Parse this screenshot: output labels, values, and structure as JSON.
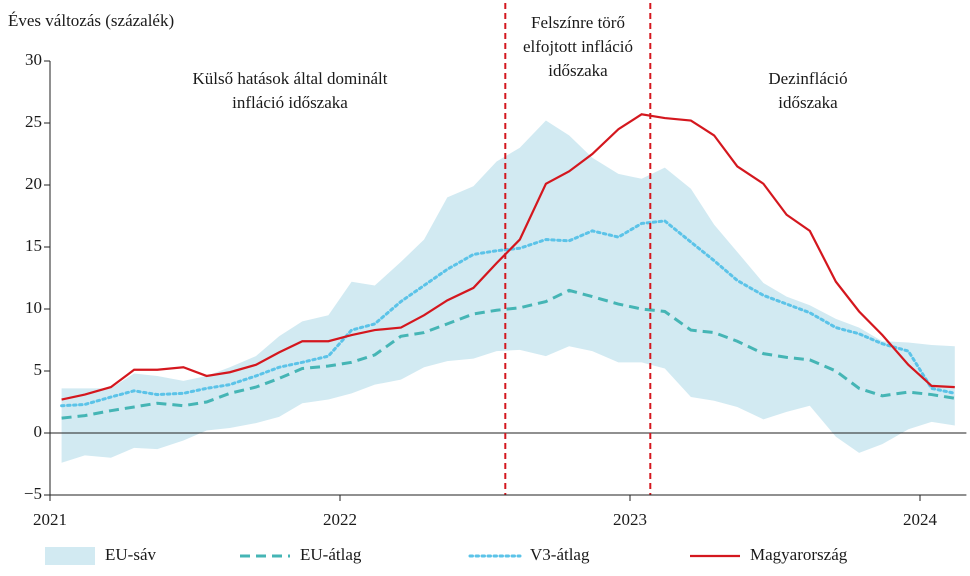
{
  "chart_data": {
    "type": "line",
    "ylabel": "Éves változás (százalék)",
    "x": [
      2021.04,
      2021.12,
      2021.21,
      2021.29,
      2021.37,
      2021.46,
      2021.54,
      2021.62,
      2021.71,
      2021.79,
      2021.87,
      2021.96,
      2022.04,
      2022.12,
      2022.21,
      2022.29,
      2022.37,
      2022.46,
      2022.54,
      2022.62,
      2022.71,
      2022.79,
      2022.87,
      2022.96,
      2023.04,
      2023.12,
      2023.21,
      2023.29,
      2023.37,
      2023.46,
      2023.54,
      2023.62,
      2023.71,
      2023.79,
      2023.87,
      2023.96,
      2024.04,
      2024.12
    ],
    "xlim": [
      2021,
      2024.16
    ],
    "xticks": [
      2021,
      2022,
      2023,
      2024
    ],
    "ylim": [
      -5,
      30
    ],
    "yticks": [
      {
        "value": -5,
        "label": "−5"
      },
      0,
      5,
      10,
      15,
      20,
      25,
      30
    ],
    "grid": false,
    "series": [
      {
        "name": "EU-sáv",
        "style": "area",
        "color": "#d2eaf2",
        "low": [
          -2.4,
          -1.8,
          -2.0,
          -1.2,
          -1.3,
          -0.6,
          0.2,
          0.4,
          0.8,
          1.3,
          2.4,
          2.7,
          3.2,
          3.9,
          4.3,
          5.3,
          5.8,
          6.0,
          6.6,
          6.7,
          6.2,
          7.0,
          6.6,
          5.7,
          5.7,
          5.2,
          2.9,
          2.6,
          2.1,
          1.1,
          1.7,
          2.2,
          -0.3,
          -1.6,
          -0.9,
          0.3,
          0.9,
          0.6
        ],
        "high": [
          3.6,
          3.6,
          3.6,
          4.8,
          4.6,
          4.2,
          4.6,
          5.3,
          6.2,
          7.8,
          9.0,
          9.5,
          12.2,
          11.9,
          13.8,
          15.6,
          19.0,
          19.9,
          21.9,
          23.0,
          25.2,
          24.0,
          22.2,
          20.9,
          20.5,
          21.4,
          19.7,
          16.8,
          14.6,
          12.1,
          11.0,
          10.3,
          9.2,
          8.5,
          7.4,
          7.3,
          7.1,
          7.0
        ]
      },
      {
        "name": "EU-átlag",
        "style": "dashed",
        "color": "#45b5b5",
        "values": [
          1.2,
          1.4,
          1.8,
          2.1,
          2.4,
          2.2,
          2.5,
          3.2,
          3.7,
          4.4,
          5.2,
          5.4,
          5.7,
          6.3,
          7.8,
          8.1,
          8.8,
          9.6,
          9.9,
          10.1,
          10.6,
          11.5,
          11.0,
          10.4,
          10.0,
          9.8,
          8.3,
          8.1,
          7.4,
          6.4,
          6.1,
          5.9,
          5.0,
          3.6,
          3.0,
          3.3,
          3.1,
          2.8
        ]
      },
      {
        "name": "V3-átlag",
        "style": "dotted",
        "color": "#5bc3e8",
        "values": [
          2.2,
          2.3,
          2.9,
          3.4,
          3.1,
          3.2,
          3.6,
          3.9,
          4.6,
          5.3,
          5.7,
          6.2,
          8.3,
          8.8,
          10.6,
          11.9,
          13.2,
          14.4,
          14.7,
          14.9,
          15.6,
          15.5,
          16.3,
          15.8,
          16.9,
          17.1,
          15.4,
          13.9,
          12.3,
          11.1,
          10.4,
          9.7,
          8.5,
          8.0,
          7.2,
          6.6,
          3.6,
          3.2
        ]
      },
      {
        "name": "Magyarország",
        "style": "solid",
        "color": "#d4171e",
        "values": [
          2.7,
          3.1,
          3.7,
          5.1,
          5.1,
          5.3,
          4.6,
          4.9,
          5.5,
          6.5,
          7.4,
          7.4,
          7.9,
          8.3,
          8.5,
          9.5,
          10.7,
          11.7,
          13.7,
          15.6,
          20.1,
          21.1,
          22.5,
          24.5,
          25.7,
          25.4,
          25.2,
          24.0,
          21.5,
          20.1,
          17.6,
          16.3,
          12.2,
          9.8,
          7.9,
          5.5,
          3.8,
          3.7
        ]
      }
    ],
    "vlines": {
      "color": "#d4171e",
      "values": [
        2022.57,
        2023.07
      ]
    },
    "annotations": [
      [
        "Külső hatások által dominált",
        "infláció időszaka"
      ],
      [
        "Felszínre törő",
        "elfojtott infláció",
        "időszaka"
      ],
      [
        "Dezinfláció",
        "időszaka"
      ]
    ]
  }
}
